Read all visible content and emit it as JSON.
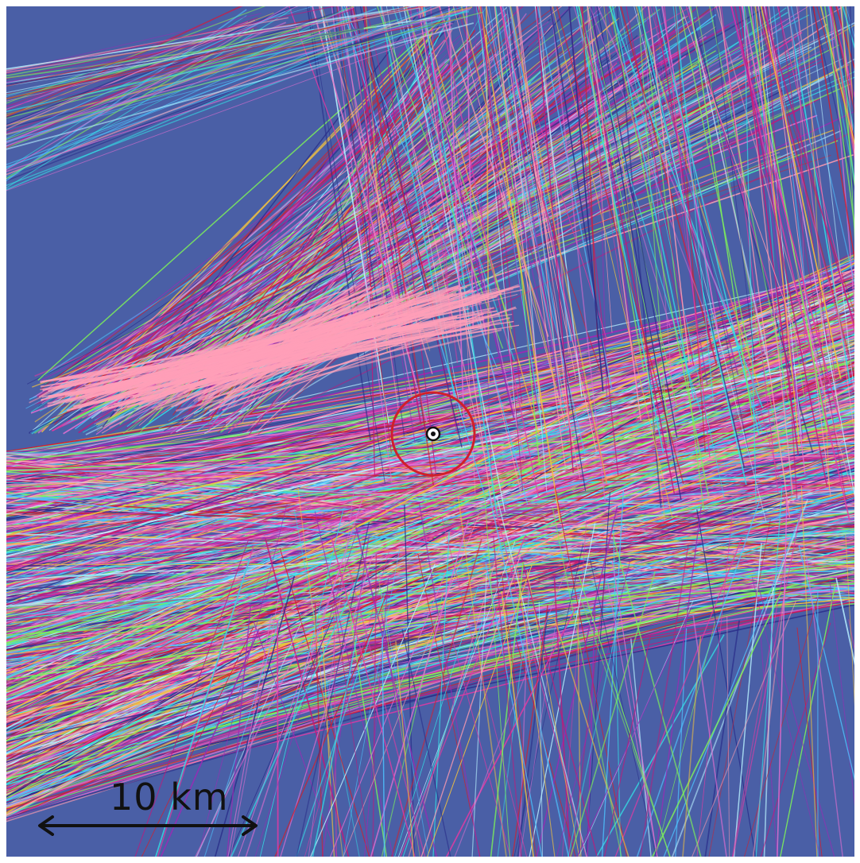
{
  "map": {
    "background_color": "#4a5fa6",
    "track_colors": [
      "#c2187a",
      "#e23aa3",
      "#33e0e6",
      "#7ef05a",
      "#4ec4ff",
      "#9a2bb4",
      "#d02030",
      "#f0c040",
      "#e06ed0",
      "#2a2f8a",
      "#b8f0ff",
      "#ff9bb0"
    ],
    "highlight_color": "#ff9fb8",
    "marker": {
      "ring_color": "#d0202a",
      "dot_icon": "target-dot-icon"
    }
  },
  "scale": {
    "label": "10 km",
    "arrow_icon": "double-arrow-icon"
  }
}
